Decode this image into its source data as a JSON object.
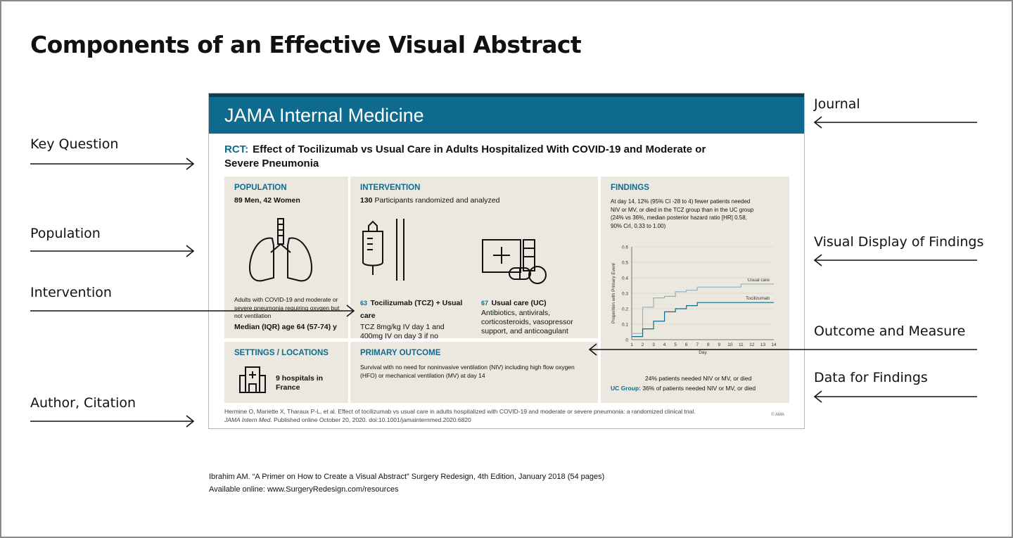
{
  "page": {
    "title": "Components of an Effective Visual Abstract",
    "reference_line1": "Ibrahim AM. “A Primer on How to Create a Visual Abstract” Surgery Redesign, 4th Edition, January 2018 (54 pages)",
    "reference_line2": "Available online: www.SurgeryRedesign.com/resources"
  },
  "labels": {
    "left": [
      "Key Question",
      "Population",
      "Intervention",
      "Author, Citation"
    ],
    "right": [
      "Journal",
      "Visual Display of Findings",
      "Outcome and Measure",
      "Data for Findings"
    ]
  },
  "abstract": {
    "journal": "JAMA Internal Medicine",
    "rct_tag": "RCT:",
    "headline": "Effect of Tocilizumab vs Usual Care in Adults Hospitalized With COVID-19 and Moderate or Severe Pneumonia",
    "population": {
      "heading": "POPULATION",
      "counts": "89 Men, 42 Women",
      "desc": "Adults with COVID-19 and moderate or severe pneumonia requiring oxygen but not ventilation",
      "age": "Median (IQR) age 64 (57-74) y"
    },
    "intervention": {
      "heading": "INTERVENTION",
      "count_num": "130",
      "count_text": "Participants randomized and analyzed",
      "tcz_num": "63",
      "tcz_name": "Tocilizumab (TCZ) + Usual care",
      "tcz_desc": "TCZ 8mg/kg IV day 1 and 400mg IV on day 3 if no improvement",
      "uc_num": "67",
      "uc_name": "Usual care (UC)",
      "uc_desc": "Antibiotics, antivirals, corticosteroids, vasopressor support, and anticoagulant"
    },
    "findings": {
      "heading": "FINDINGS",
      "text": "At day 14, 12% (95% CI -28 to 4) fewer patients needed NIV or MV, or died in the TCZ group than in the UC group (24% vs 36%, median posterior hazard ratio [HR] 0.58, 90% CrI, 0.33 to 1.00)",
      "tcz_result": "24% patients needed NIV or MV, or died",
      "uc_group_label": "UC Group:",
      "uc_result": "36% of patients needed NIV or MV, or died"
    },
    "settings": {
      "heading": "SETTINGS / LOCATIONS",
      "text": "9 hospitals in France"
    },
    "outcome": {
      "heading": "PRIMARY OUTCOME",
      "text": "Survival with no need for noninvasive ventilation (NIV) including high flow oxygen (HFO) or mechanical ventilation (MV) at day 14"
    },
    "citation_line1": "Hermine O, Mariette X, Tharaux P-L, et al. Effect of tocilizumab vs usual care in adults hospitalized with COVID-19 and moderate or severe pneumonia: a randomized clinical trial.",
    "citation_journal": "JAMA Intern Med",
    "citation_line2": ". Published online October 20, 2020. doi:10.1001/jamainternmed.2020.6820",
    "copyright": "© AMA"
  },
  "colors": {
    "accent": "#0f6b8e",
    "usual_care": "#8fb3c2",
    "tocilizumab": "#0f6b8e",
    "panel": "#ebe9df"
  },
  "chart_data": {
    "type": "line",
    "xlabel": "Day",
    "ylabel": "Proportion with Primary Event",
    "xlim": [
      1,
      14
    ],
    "ylim": [
      0,
      0.6
    ],
    "xticks": [
      1,
      2,
      3,
      4,
      5,
      6,
      7,
      8,
      9,
      10,
      11,
      12,
      13,
      14
    ],
    "yticks": [
      0,
      0.1,
      0.2,
      0.3,
      0.4,
      0.5,
      0.6
    ],
    "series": [
      {
        "name": "Usual care",
        "x": [
          1,
          2,
          3,
          4,
          5,
          6,
          7,
          11,
          14
        ],
        "y": [
          0.04,
          0.21,
          0.27,
          0.28,
          0.31,
          0.32,
          0.34,
          0.36,
          0.36
        ]
      },
      {
        "name": "Tocilizumab",
        "x": [
          1,
          2,
          3,
          4,
          5,
          6,
          7,
          14
        ],
        "y": [
          0.02,
          0.07,
          0.12,
          0.18,
          0.2,
          0.22,
          0.24,
          0.24
        ]
      }
    ],
    "grid": true
  }
}
